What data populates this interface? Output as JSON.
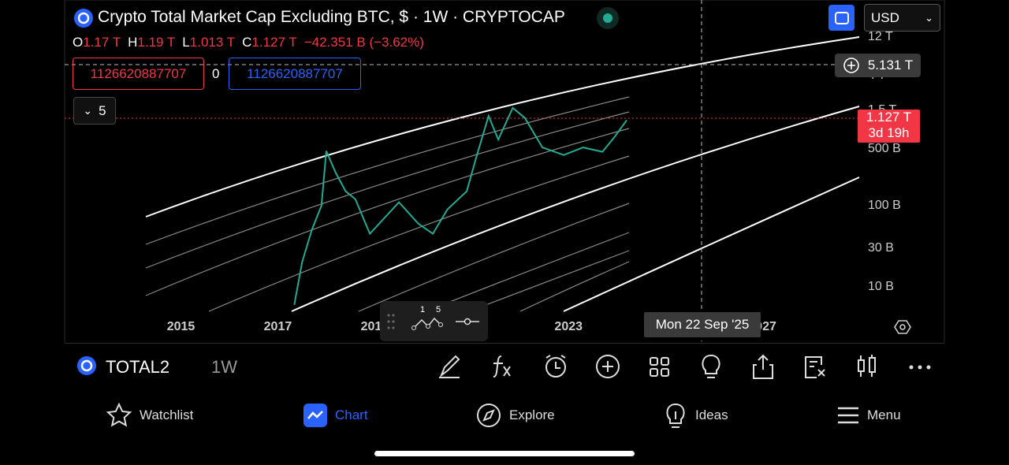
{
  "header": {
    "title": "Crypto Total Market Cap Excluding BTC, $ · 1W · CRYPTOCAP",
    "currency": "USD"
  },
  "ohlc": [
    {
      "label": "O",
      "value": "1.17 T"
    },
    {
      "label": "H",
      "value": "1.19 T"
    },
    {
      "label": "L",
      "value": "1.013 T"
    },
    {
      "label": "C",
      "value": "1.127 T"
    }
  ],
  "change": "−42.351 B (−3.62%)",
  "inputs": {
    "left": "1126620887707",
    "middle": "0",
    "right": "1126620887707"
  },
  "indicators_toggle": "5",
  "price_tag": {
    "price": "1.127 T",
    "countdown": "3d 19h"
  },
  "crosshair": {
    "price": "5.131 T",
    "date": "Mon 22 Sep '25"
  },
  "floating_toolbar": {
    "left": "1",
    "right": "5"
  },
  "chart_data": {
    "type": "line",
    "x": [
      2017.34,
      2017.5,
      2017.7,
      2017.9,
      2018.0,
      2018.2,
      2018.4,
      2018.6,
      2018.9,
      2019.5,
      2019.9,
      2020.2,
      2020.5,
      2020.9,
      2021.1,
      2021.35,
      2021.55,
      2021.85,
      2022.1,
      2022.46,
      2022.9,
      2023.3,
      2023.7,
      2023.95,
      2024.2
    ],
    "values": [
      6,
      20,
      50,
      100,
      470,
      250,
      150,
      120,
      45,
      110,
      60,
      45,
      90,
      150,
      400,
      1270,
      650,
      1600,
      1200,
      520,
      420,
      520,
      460,
      700,
      1127
    ],
    "color": "#22ab94",
    "log": true,
    "xlim": [
      2012.6,
      2029
    ],
    "xticks": [
      2015,
      2017,
      2019,
      2021,
      2023,
      2025,
      2027
    ],
    "ylim": [
      5,
      13000
    ],
    "yticks": [
      {
        "value": 10,
        "label": "10 B"
      },
      {
        "value": 30,
        "label": "30 B"
      },
      {
        "value": 100,
        "label": "100 B"
      },
      {
        "value": 500,
        "label": "500 B"
      },
      {
        "value": 1500,
        "label": "1.5 T"
      },
      {
        "value": 4000,
        "label": "4 T"
      },
      {
        "value": 12000,
        "label": "12 T"
      }
    ]
  },
  "toolbar": {
    "symbol": "TOTAL2",
    "interval": "1W"
  },
  "tabs": [
    "Watchlist",
    "Chart",
    "Explore",
    "Ideas",
    "Menu"
  ]
}
